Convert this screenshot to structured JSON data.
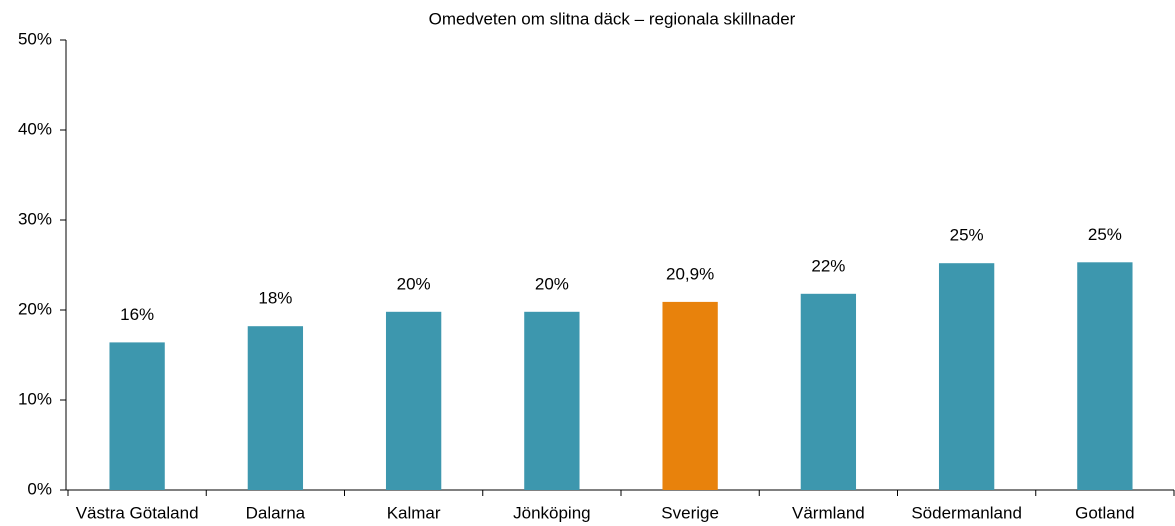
{
  "chart_data": {
    "type": "bar",
    "title": "Omedveten om slitna däck – regionala skillnader",
    "categories": [
      "Västra Götaland",
      "Dalarna",
      "Kalmar",
      "Jönköping",
      "Sverige",
      "Värmland",
      "Södermanland",
      "Gotland"
    ],
    "values": [
      16.4,
      18.2,
      19.8,
      19.8,
      20.9,
      21.8,
      25.2,
      25.3
    ],
    "value_labels": [
      "16%",
      "18%",
      "20%",
      "20%",
      "20,9%",
      "22%",
      "25%",
      "25%"
    ],
    "colors": [
      "#3d97ae",
      "#3d97ae",
      "#3d97ae",
      "#3d97ae",
      "#e8820c",
      "#3d97ae",
      "#3d97ae",
      "#3d97ae"
    ],
    "ylim": [
      0,
      50
    ],
    "yticks": [
      {
        "value": 0,
        "label": "0%"
      },
      {
        "value": 10,
        "label": "10%"
      },
      {
        "value": 20,
        "label": "20%"
      },
      {
        "value": 30,
        "label": "30%"
      },
      {
        "value": 40,
        "label": "40%"
      },
      {
        "value": 50,
        "label": "50%"
      }
    ],
    "grid": false
  }
}
